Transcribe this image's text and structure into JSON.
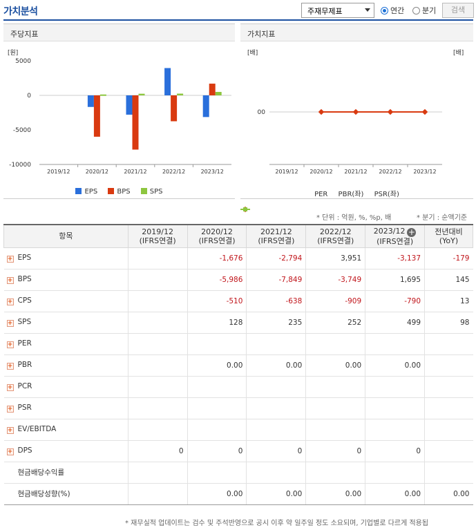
{
  "header": {
    "title": "가치분석",
    "select_value": "주재무제표",
    "radio_annual": "연간",
    "radio_quarter": "분기",
    "search_label": "검색"
  },
  "left_panel": {
    "title": "주당지표",
    "unit": "[원]"
  },
  "right_panel": {
    "title": "가치지표",
    "unit_left": "[배]",
    "unit_right": "[배]"
  },
  "notes": {
    "unit_note": "* 단위 : 억원, %, %p, 배",
    "quarter_note": "* 분기 : 순액기준",
    "footnote": "* 재무실적 업데이트는 검수 및 주석반영으로 공시 이후 약 일주일 정도 소요되며, 기업별로 다르게 적용됩"
  },
  "colors": {
    "eps": "#2a6fdb",
    "bps": "#d93a10",
    "sps": "#8dc63f",
    "line": "#d93a10",
    "per": "#2a6fdb"
  },
  "chart_data": [
    {
      "type": "bar",
      "categories": [
        "2019/12",
        "2020/12",
        "2021/12",
        "2022/12",
        "2023/12"
      ],
      "ylabel": "[원]",
      "ylim": [
        -10000,
        5000
      ],
      "yticks": [
        "5000",
        "0",
        "-5000",
        "-10000"
      ],
      "series": [
        {
          "name": "EPS",
          "values": [
            null,
            -1676,
            -2794,
            3951,
            -3137
          ]
        },
        {
          "name": "BPS",
          "values": [
            null,
            -5986,
            -7849,
            -3749,
            1695
          ]
        },
        {
          "name": "SPS",
          "values": [
            null,
            128,
            235,
            252,
            499
          ]
        }
      ]
    },
    {
      "type": "line",
      "categories": [
        "2019/12",
        "2020/12",
        "2021/12",
        "2022/12",
        "2023/12"
      ],
      "ylabel": "[배]",
      "yticks": [
        "00"
      ],
      "series": [
        {
          "name": "PER",
          "values": [
            null,
            null,
            null,
            null,
            null
          ]
        },
        {
          "name": "PBR(좌)",
          "values": [
            null,
            0,
            0,
            0,
            0
          ]
        },
        {
          "name": "PSR(좌)",
          "values": [
            null,
            null,
            null,
            null,
            null
          ]
        }
      ]
    }
  ],
  "table": {
    "head_item": "항목",
    "columns": [
      {
        "year": "2019/12",
        "sub": "(IFRS연결)"
      },
      {
        "year": "2020/12",
        "sub": "(IFRS연결)"
      },
      {
        "year": "2021/12",
        "sub": "(IFRS연결)"
      },
      {
        "year": "2022/12",
        "sub": "(IFRS연결)"
      },
      {
        "year": "2023/12",
        "sub": "(IFRS연결)"
      },
      {
        "year": "전년대비",
        "sub": "(YoY)"
      }
    ],
    "rows": [
      {
        "label": "EPS",
        "expand": true,
        "values": [
          "",
          "-1,676",
          "-2,794",
          "3,951",
          "-3,137",
          "-179"
        ]
      },
      {
        "label": "BPS",
        "expand": true,
        "values": [
          "",
          "-5,986",
          "-7,849",
          "-3,749",
          "1,695",
          "145"
        ]
      },
      {
        "label": "CPS",
        "expand": true,
        "values": [
          "",
          "-510",
          "-638",
          "-909",
          "-790",
          "13"
        ]
      },
      {
        "label": "SPS",
        "expand": true,
        "values": [
          "",
          "128",
          "235",
          "252",
          "499",
          "98"
        ]
      },
      {
        "label": "PER",
        "expand": true,
        "values": [
          "",
          "",
          "",
          "",
          "",
          ""
        ]
      },
      {
        "label": "PBR",
        "expand": true,
        "values": [
          "",
          "0.00",
          "0.00",
          "0.00",
          "0.00",
          ""
        ]
      },
      {
        "label": "PCR",
        "expand": true,
        "values": [
          "",
          "",
          "",
          "",
          "",
          ""
        ]
      },
      {
        "label": "PSR",
        "expand": true,
        "values": [
          "",
          "",
          "",
          "",
          "",
          ""
        ]
      },
      {
        "label": "EV/EBITDA",
        "expand": true,
        "values": [
          "",
          "",
          "",
          "",
          "",
          ""
        ]
      },
      {
        "label": "DPS",
        "expand": true,
        "values": [
          "0",
          "0",
          "0",
          "0",
          "0",
          ""
        ]
      },
      {
        "label": "현금배당수익률",
        "expand": false,
        "values": [
          "",
          "",
          "",
          "",
          "",
          ""
        ]
      },
      {
        "label": "현금배당성향(%)",
        "expand": false,
        "values": [
          "",
          "0.00",
          "0.00",
          "0.00",
          "0.00",
          "0.00"
        ]
      }
    ]
  }
}
